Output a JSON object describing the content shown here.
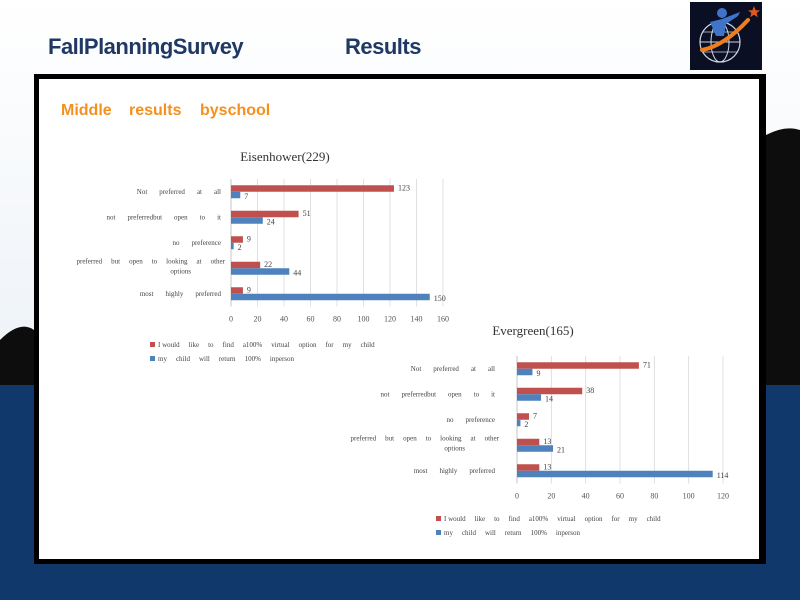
{
  "header": {
    "title": "FallPlanningSurvey",
    "results": "Results"
  },
  "subtitle": {
    "w1": "Middle",
    "w2": "results",
    "w3": "byschool"
  },
  "colors": {
    "red": "#c0504d",
    "blue": "#4f81bd",
    "navy": "#10386b",
    "accent": "#f5901e"
  },
  "logo": {
    "icon": "school-logo-icon"
  },
  "chart_data": [
    {
      "type": "bar",
      "orientation": "horizontal",
      "title": "Eisenhower(229)",
      "categories": [
        [
          "Not",
          "preferred",
          "at",
          "all"
        ],
        [
          "not",
          "preferredbut",
          "open",
          "to",
          "it"
        ],
        [
          "no",
          "preference"
        ],
        [
          "preferred",
          "but",
          "open",
          "to",
          "looking",
          "at",
          "other"
        ],
        [
          "most",
          "highly",
          "preferred"
        ]
      ],
      "category_line2": [
        "",
        "",
        "",
        "options",
        ""
      ],
      "series": [
        {
          "name": [
            "I would",
            "like",
            "to",
            "find",
            "a100%",
            "virtual",
            "option",
            "for",
            "my",
            "child"
          ],
          "color": "#c0504d",
          "values": [
            123,
            51,
            9,
            22,
            9
          ]
        },
        {
          "name": [
            "my",
            "child",
            "will",
            "return",
            "100%",
            "inperson"
          ],
          "color": "#4f81bd",
          "values": [
            7,
            24,
            2,
            44,
            150
          ]
        }
      ],
      "xlim": [
        0,
        160
      ],
      "xticks": [
        0,
        20,
        40,
        60,
        80,
        100,
        120,
        140,
        160
      ],
      "grid": true,
      "legend": "bottom"
    },
    {
      "type": "bar",
      "orientation": "horizontal",
      "title": "Evergreen(165)",
      "categories": [
        [
          "Not",
          "preferred",
          "at",
          "all"
        ],
        [
          "not",
          "preferredbut",
          "open",
          "to",
          "it"
        ],
        [
          "no",
          "preference"
        ],
        [
          "preferred",
          "but",
          "open",
          "to",
          "looking",
          "at",
          "other"
        ],
        [
          "most",
          "highly",
          "preferred"
        ]
      ],
      "category_line2": [
        "",
        "",
        "",
        "options",
        ""
      ],
      "series": [
        {
          "name": [
            "I would",
            "like",
            "to",
            "find",
            "a100%",
            "virtual",
            "option",
            "for",
            "my",
            "child"
          ],
          "color": "#c0504d",
          "values": [
            71,
            38,
            7,
            13,
            13
          ]
        },
        {
          "name": [
            "my",
            "child",
            "will",
            "return",
            "100%",
            "inperson"
          ],
          "color": "#4f81bd",
          "values": [
            9,
            14,
            2,
            21,
            114
          ]
        }
      ],
      "xlim": [
        0,
        120
      ],
      "xticks": [
        0,
        20,
        40,
        60,
        80,
        100,
        120
      ],
      "grid": true,
      "legend": "bottom"
    }
  ]
}
